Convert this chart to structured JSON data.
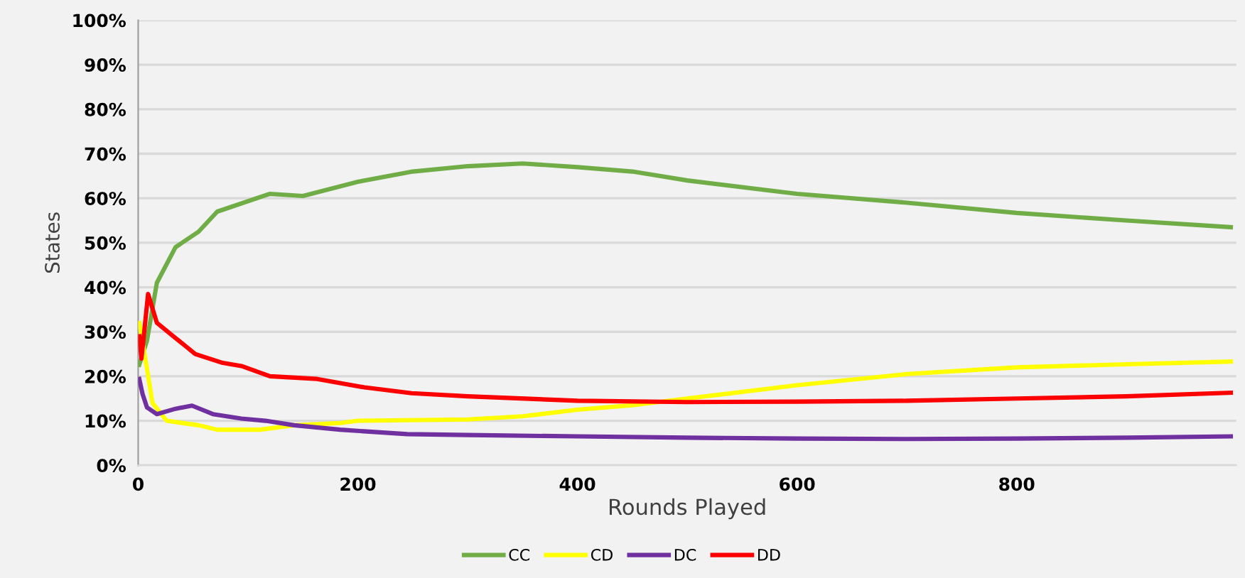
{
  "chart_data": {
    "type": "line",
    "xlabel": "Rounds Played",
    "ylabel": "States",
    "xlim": [
      0,
      1000
    ],
    "xticks": [
      0,
      200,
      400,
      600,
      800
    ],
    "ylim": [
      0,
      100
    ],
    "yticks": [
      {
        "value": 0,
        "label": "0%"
      },
      {
        "value": 10,
        "label": "10%"
      },
      {
        "value": 20,
        "label": "20%"
      },
      {
        "value": 30,
        "label": "30%"
      },
      {
        "value": 40,
        "label": "40%"
      },
      {
        "value": 50,
        "label": "50%"
      },
      {
        "value": 60,
        "label": "60%"
      },
      {
        "value": 70,
        "label": "70%"
      },
      {
        "value": 80,
        "label": "80%"
      },
      {
        "value": 90,
        "label": "90%"
      },
      {
        "value": 100,
        "label": "100%"
      }
    ],
    "grid": "y",
    "legend": "bottom",
    "marker": "none",
    "line_style": "solid",
    "series": [
      {
        "name": "CC",
        "color": "#70ad47",
        "x": [
          1,
          8,
          17,
          34,
          55,
          72,
          120,
          150,
          200,
          250,
          300,
          350,
          400,
          450,
          500,
          600,
          700,
          800,
          900,
          995
        ],
        "values": [
          22.6,
          28,
          41,
          49,
          52.5,
          57,
          61,
          60.5,
          63.7,
          66,
          67.2,
          67.8,
          67,
          66,
          64,
          61,
          59,
          56.7,
          55,
          53.5
        ]
      },
      {
        "name": "CD",
        "color": "#ffff00",
        "x": [
          1,
          8,
          13,
          26,
          55,
          72,
          111,
          142,
          184,
          200,
          300,
          350,
          400,
          450,
          500,
          600,
          700,
          800,
          900,
          995
        ],
        "values": [
          32,
          21.7,
          14,
          10,
          9,
          8,
          8,
          9,
          9.5,
          10,
          10.3,
          11,
          12.5,
          13.5,
          15,
          18,
          20.5,
          22,
          22.7,
          23.3
        ]
      },
      {
        "name": "DC",
        "color": "#7030a0",
        "x": [
          1,
          4,
          8,
          17,
          34,
          49,
          68,
          94,
          116,
          142,
          184,
          245,
          300,
          400,
          500,
          600,
          700,
          800,
          900,
          995
        ],
        "values": [
          19.4,
          16,
          13,
          11.5,
          12.7,
          13.4,
          11.5,
          10.5,
          10,
          9,
          8,
          7,
          6.8,
          6.5,
          6.2,
          6,
          5.9,
          6,
          6.2,
          6.5
        ]
      },
      {
        "name": "DD",
        "color": "#ff0000",
        "x": [
          1,
          3,
          9,
          17,
          34,
          52,
          77,
          94,
          120,
          163,
          206,
          249,
          300,
          400,
          500,
          600,
          700,
          800,
          900,
          995
        ],
        "values": [
          29,
          24,
          38.5,
          32,
          28.6,
          25,
          23,
          22.3,
          20,
          19.4,
          17.5,
          16.2,
          15.5,
          14.5,
          14.2,
          14.3,
          14.5,
          15,
          15.5,
          16.3
        ]
      }
    ]
  }
}
